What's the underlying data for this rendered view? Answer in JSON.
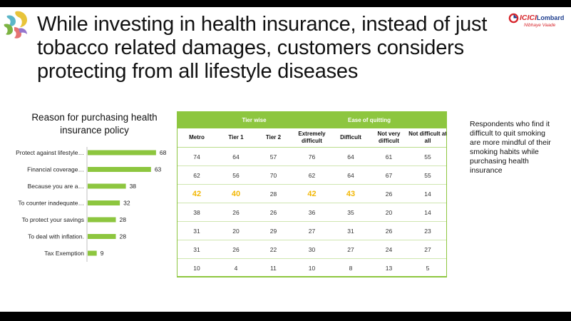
{
  "slide": {
    "title": "While investing in health insurance, instead of just tobacco related damages, customers considers protecting from all lifestyle diseases",
    "logo": {
      "name": "ICICI Lombard",
      "brand_text": "ICICI",
      "brand_suffix": "Lombard",
      "tagline": "Nibhaye Vaade"
    },
    "side_note": "Respondents who find it difficult to quit smoking are more mindful of their smoking habits while purchasing health insurance"
  },
  "colors": {
    "accent": "#8dc63f",
    "highlight": "#f2b705",
    "brand_red": "#d7252b",
    "brand_blue": "#1f3f8f"
  },
  "chart_data": {
    "type": "bar",
    "orientation": "horizontal",
    "title": "Reason for purchasing health insurance policy",
    "categories": [
      "Protect against lifestyle…",
      "Financial coverage…",
      "Because you are a…",
      "To counter inadequate…",
      "To protect your savings",
      "To deal with inflation.",
      "Tax Exemption"
    ],
    "values": [
      68,
      63,
      38,
      32,
      28,
      28,
      9
    ],
    "xlim": [
      0,
      100
    ],
    "grid": false,
    "legend": "none"
  },
  "table": {
    "groups": [
      {
        "label": "",
        "span": 1
      },
      {
        "label": "Tier wise",
        "span": 2
      },
      {
        "label": "Ease of quitting",
        "span": 4
      }
    ],
    "columns": [
      "Metro",
      "Tier 1",
      "Tier 2",
      "Extremely difficult",
      "Difficult",
      "Not very difficult",
      "Not difficult at all"
    ],
    "rows": [
      [
        "74",
        "64",
        "57",
        "76",
        "64",
        "61",
        "55"
      ],
      [
        "62",
        "56",
        "70",
        "62",
        "64",
        "67",
        "55"
      ],
      [
        "42",
        "40",
        "28",
        "42",
        "43",
        "26",
        "14"
      ],
      [
        "38",
        "26",
        "26",
        "36",
        "35",
        "20",
        "14"
      ],
      [
        "31",
        "20",
        "29",
        "27",
        "31",
        "26",
        "23"
      ],
      [
        "31",
        "26",
        "22",
        "30",
        "27",
        "24",
        "27"
      ],
      [
        "10",
        "4",
        "11",
        "10",
        "8",
        "13",
        "5"
      ]
    ],
    "highlighted_row": 2,
    "highlighted_cols": [
      0,
      1,
      3,
      4
    ]
  }
}
